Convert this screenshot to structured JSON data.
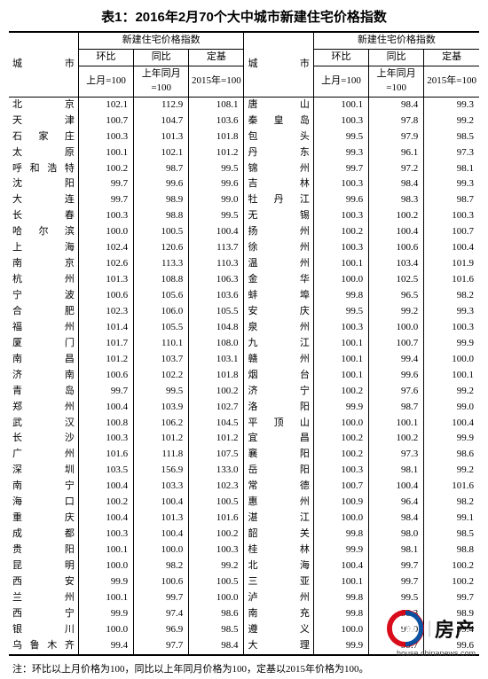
{
  "title": "表1：2016年2月70个大中城市新建住宅价格指数",
  "group_header": "新建住宅价格指数",
  "col_city": "城市",
  "col_hb": "环比",
  "col_tb": "同比",
  "col_dj": "定基",
  "sub_hb": "上月=100",
  "sub_tb": "上年同月=100",
  "sub_dj": "2015年=100",
  "footnote": "注：环比以上月价格为100，同比以上年同月价格为100，定基以2015年价格为100。",
  "watermark_text": "房产",
  "watermark_url": "house.chinanews.com",
  "left": [
    {
      "c": "北京",
      "v": [
        "102.1",
        "112.9",
        "108.1"
      ]
    },
    {
      "c": "天津",
      "v": [
        "100.7",
        "104.7",
        "103.6"
      ]
    },
    {
      "c": "石家庄",
      "v": [
        "100.3",
        "101.3",
        "101.8"
      ]
    },
    {
      "c": "太原",
      "v": [
        "100.1",
        "102.1",
        "101.2"
      ]
    },
    {
      "c": "呼和浩特",
      "v": [
        "100.2",
        "98.7",
        "99.5"
      ]
    },
    {
      "c": "沈阳",
      "v": [
        "99.7",
        "99.6",
        "99.6"
      ]
    },
    {
      "c": "大连",
      "v": [
        "99.7",
        "98.9",
        "99.0"
      ]
    },
    {
      "c": "长春",
      "v": [
        "100.3",
        "98.8",
        "99.5"
      ]
    },
    {
      "c": "哈尔滨",
      "v": [
        "100.0",
        "100.5",
        "100.4"
      ]
    },
    {
      "c": "上海",
      "v": [
        "102.4",
        "120.6",
        "113.7"
      ]
    },
    {
      "c": "南京",
      "v": [
        "102.6",
        "113.3",
        "110.3"
      ]
    },
    {
      "c": "杭州",
      "v": [
        "101.3",
        "108.8",
        "106.3"
      ]
    },
    {
      "c": "宁波",
      "v": [
        "100.6",
        "105.6",
        "103.6"
      ]
    },
    {
      "c": "合肥",
      "v": [
        "102.3",
        "106.0",
        "105.5"
      ]
    },
    {
      "c": "福州",
      "v": [
        "101.4",
        "105.5",
        "104.8"
      ]
    },
    {
      "c": "厦门",
      "v": [
        "101.7",
        "110.1",
        "108.0"
      ]
    },
    {
      "c": "南昌",
      "v": [
        "101.2",
        "103.7",
        "103.1"
      ]
    },
    {
      "c": "济南",
      "v": [
        "100.6",
        "102.2",
        "101.8"
      ]
    },
    {
      "c": "青岛",
      "v": [
        "99.7",
        "99.5",
        "100.2"
      ]
    },
    {
      "c": "郑州",
      "v": [
        "100.4",
        "103.9",
        "102.7"
      ]
    },
    {
      "c": "武汉",
      "v": [
        "100.8",
        "106.2",
        "104.5"
      ]
    },
    {
      "c": "长沙",
      "v": [
        "100.3",
        "101.2",
        "101.2"
      ]
    },
    {
      "c": "广州",
      "v": [
        "101.6",
        "111.8",
        "107.5"
      ]
    },
    {
      "c": "深圳",
      "v": [
        "103.5",
        "156.9",
        "133.0"
      ]
    },
    {
      "c": "南宁",
      "v": [
        "100.4",
        "103.3",
        "102.3"
      ]
    },
    {
      "c": "海口",
      "v": [
        "100.2",
        "100.4",
        "100.5"
      ]
    },
    {
      "c": "重庆",
      "v": [
        "100.4",
        "101.3",
        "101.6"
      ]
    },
    {
      "c": "成都",
      "v": [
        "100.3",
        "100.4",
        "100.2"
      ]
    },
    {
      "c": "贵阳",
      "v": [
        "100.1",
        "100.0",
        "100.3"
      ]
    },
    {
      "c": "昆明",
      "v": [
        "100.0",
        "98.2",
        "99.2"
      ]
    },
    {
      "c": "西安",
      "v": [
        "99.9",
        "100.6",
        "100.5"
      ]
    },
    {
      "c": "兰州",
      "v": [
        "100.1",
        "99.7",
        "100.0"
      ]
    },
    {
      "c": "西宁",
      "v": [
        "99.9",
        "97.4",
        "98.6"
      ]
    },
    {
      "c": "银川",
      "v": [
        "100.0",
        "96.9",
        "98.5"
      ]
    },
    {
      "c": "乌鲁木齐",
      "v": [
        "99.4",
        "97.7",
        "98.4"
      ]
    }
  ],
  "right": [
    {
      "c": "唐山",
      "v": [
        "100.1",
        "98.4",
        "99.3"
      ]
    },
    {
      "c": "秦皇岛",
      "v": [
        "100.3",
        "97.8",
        "99.2"
      ]
    },
    {
      "c": "包头",
      "v": [
        "99.5",
        "97.9",
        "98.5"
      ]
    },
    {
      "c": "丹东",
      "v": [
        "99.3",
        "96.1",
        "97.3"
      ]
    },
    {
      "c": "锦州",
      "v": [
        "99.7",
        "97.2",
        "98.1"
      ]
    },
    {
      "c": "吉林",
      "v": [
        "100.3",
        "98.4",
        "99.3"
      ]
    },
    {
      "c": "牡丹江",
      "v": [
        "99.6",
        "98.3",
        "98.7"
      ]
    },
    {
      "c": "无锡",
      "v": [
        "100.3",
        "100.2",
        "100.3"
      ]
    },
    {
      "c": "扬州",
      "v": [
        "100.2",
        "100.4",
        "100.7"
      ]
    },
    {
      "c": "徐州",
      "v": [
        "100.3",
        "100.6",
        "100.4"
      ]
    },
    {
      "c": "温州",
      "v": [
        "100.1",
        "103.4",
        "101.9"
      ]
    },
    {
      "c": "金华",
      "v": [
        "100.0",
        "102.5",
        "101.6"
      ]
    },
    {
      "c": "蚌埠",
      "v": [
        "99.8",
        "96.5",
        "98.2"
      ]
    },
    {
      "c": "安庆",
      "v": [
        "99.5",
        "99.2",
        "99.3"
      ]
    },
    {
      "c": "泉州",
      "v": [
        "100.3",
        "100.0",
        "100.3"
      ]
    },
    {
      "c": "九江",
      "v": [
        "100.1",
        "100.7",
        "99.9"
      ]
    },
    {
      "c": "赣州",
      "v": [
        "100.1",
        "99.4",
        "100.0"
      ]
    },
    {
      "c": "烟台",
      "v": [
        "100.1",
        "99.6",
        "100.1"
      ]
    },
    {
      "c": "济宁",
      "v": [
        "100.2",
        "97.6",
        "99.2"
      ]
    },
    {
      "c": "洛阳",
      "v": [
        "99.9",
        "98.7",
        "99.0"
      ]
    },
    {
      "c": "平顶山",
      "v": [
        "100.0",
        "100.1",
        "100.4"
      ]
    },
    {
      "c": "宜昌",
      "v": [
        "100.2",
        "100.2",
        "99.9"
      ]
    },
    {
      "c": "襄阳",
      "v": [
        "100.2",
        "97.3",
        "98.6"
      ]
    },
    {
      "c": "岳阳",
      "v": [
        "100.3",
        "98.1",
        "99.2"
      ]
    },
    {
      "c": "常德",
      "v": [
        "100.7",
        "100.4",
        "101.6"
      ]
    },
    {
      "c": "惠州",
      "v": [
        "100.9",
        "96.4",
        "98.2"
      ]
    },
    {
      "c": "湛江",
      "v": [
        "100.0",
        "98.4",
        "99.1"
      ]
    },
    {
      "c": "韶关",
      "v": [
        "99.8",
        "98.0",
        "98.5"
      ]
    },
    {
      "c": "桂林",
      "v": [
        "99.9",
        "98.1",
        "98.8"
      ]
    },
    {
      "c": "北海",
      "v": [
        "100.4",
        "99.7",
        "100.2"
      ]
    },
    {
      "c": "三亚",
      "v": [
        "100.1",
        "99.7",
        "100.2"
      ]
    },
    {
      "c": "泸州",
      "v": [
        "99.8",
        "99.5",
        "99.7"
      ]
    },
    {
      "c": "南充",
      "v": [
        "99.8",
        "98.3",
        "98.9"
      ]
    },
    {
      "c": "遵义",
      "v": [
        "100.0",
        "99.0",
        "99.4"
      ]
    },
    {
      "c": "大理",
      "v": [
        "99.9",
        "99.7",
        "99.6"
      ]
    }
  ],
  "colors": {
    "text": "#000000",
    "border": "#000000",
    "bg": "#ffffff",
    "wm_red": "#d7000f",
    "wm_blue": "#004a9f"
  }
}
